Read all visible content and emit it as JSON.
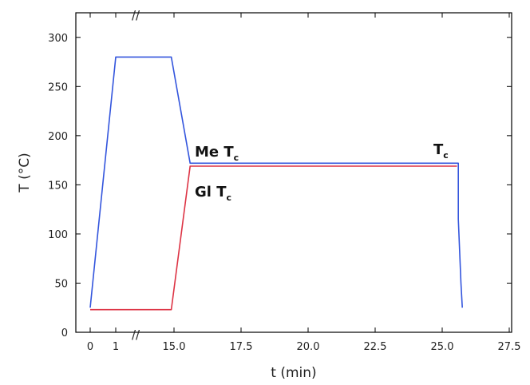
{
  "chart_data": {
    "type": "line",
    "xlabel": "t (min)",
    "ylabel": "T (°C)",
    "y_ticks": [
      0,
      50,
      100,
      150,
      200,
      250,
      300
    ],
    "ylim": [
      0,
      325
    ],
    "x_ticks": [
      "0",
      "1",
      "15.0",
      "17.5",
      "20.0",
      "22.5",
      "25.0",
      "27.5"
    ],
    "x_ticks_first_segment": [
      "0",
      "1"
    ],
    "x_ticks_second_segment": [
      15.0,
      17.5,
      20.0,
      22.5,
      25.0,
      27.5
    ],
    "axis_break": "//",
    "series": [
      {
        "color": "#3355dd",
        "points": [
          [
            0,
            25
          ],
          [
            1,
            280
          ],
          [
            14.9,
            280
          ],
          [
            15.6,
            172
          ],
          [
            25.6,
            172
          ],
          [
            25.6,
            115
          ],
          [
            25.7,
            50
          ],
          [
            25.75,
            25
          ]
        ]
      },
      {
        "color": "#dd3344",
        "points": [
          [
            0,
            23
          ],
          [
            14.9,
            23
          ],
          [
            15.6,
            169
          ],
          [
            25.55,
            169
          ]
        ]
      }
    ],
    "annotations": [
      {
        "main": "Me T",
        "sub": "c"
      },
      {
        "main": "Gl T",
        "sub": "c"
      },
      {
        "main": "T",
        "sub": "c"
      }
    ]
  }
}
